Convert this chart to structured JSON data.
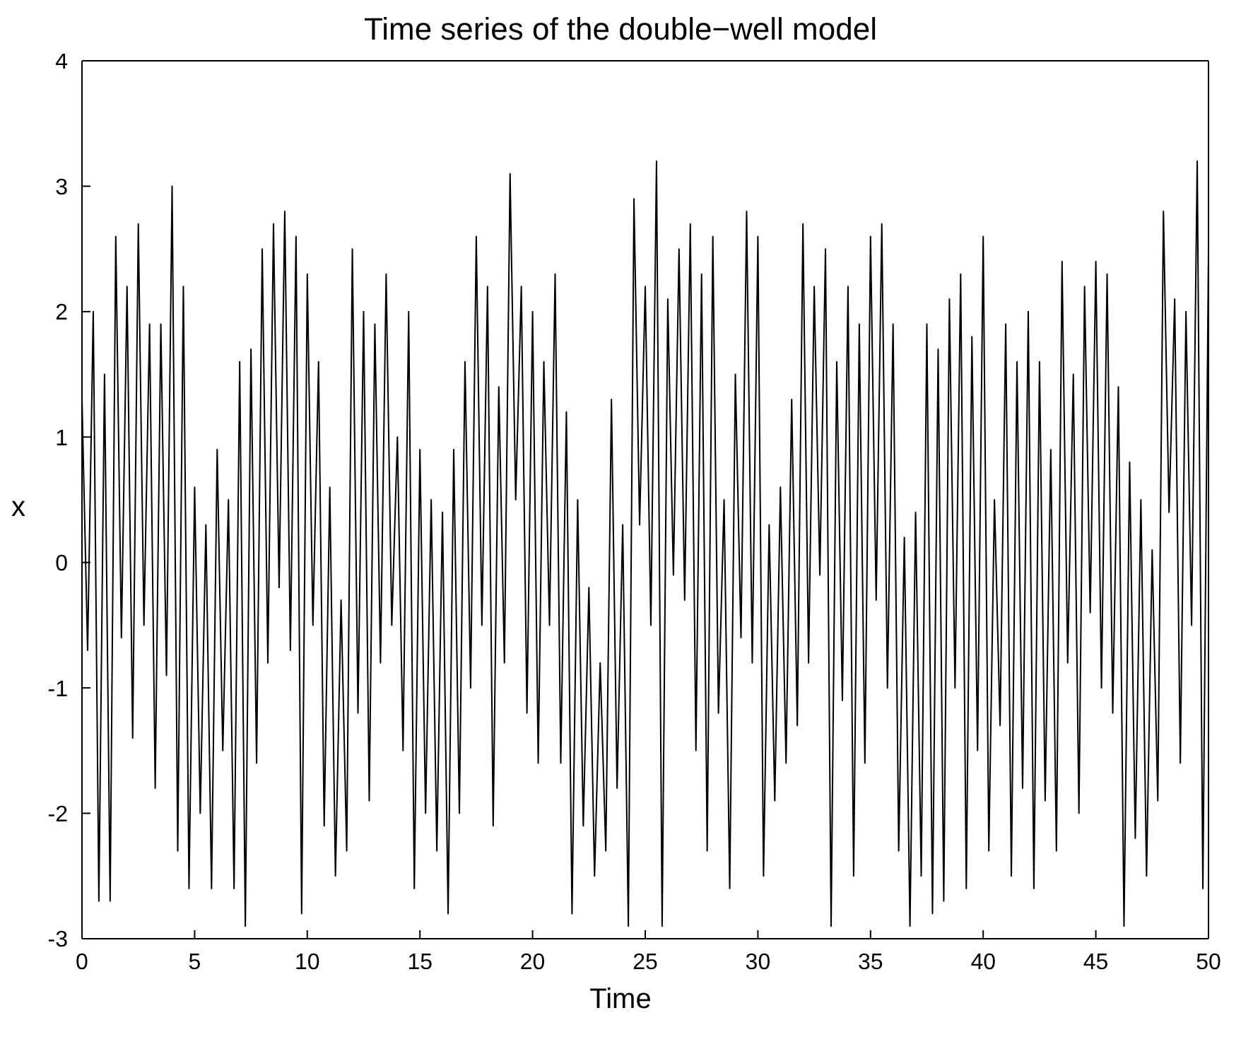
{
  "chart_data": {
    "type": "line",
    "title": "Time series of the double−well model",
    "xlabel": "Time",
    "ylabel": "x",
    "x": [
      0,
      0.25,
      0.5,
      0.75,
      1,
      1.25,
      1.5,
      1.75,
      2,
      2.25,
      2.5,
      2.75,
      3,
      3.25,
      3.5,
      3.75,
      4,
      4.25,
      4.5,
      4.75,
      5,
      5.25,
      5.5,
      5.75,
      6,
      6.25,
      6.5,
      6.75,
      7,
      7.25,
      7.5,
      7.75,
      8,
      8.25,
      8.5,
      8.75,
      9,
      9.25,
      9.5,
      9.75,
      10,
      10.25,
      10.5,
      10.75,
      11,
      11.25,
      11.5,
      11.75,
      12,
      12.25,
      12.5,
      12.75,
      13,
      13.25,
      13.5,
      13.75,
      14,
      14.25,
      14.5,
      14.75,
      15,
      15.25,
      15.5,
      15.75,
      16,
      16.25,
      16.5,
      16.75,
      17,
      17.25,
      17.5,
      17.75,
      18,
      18.25,
      18.5,
      18.75,
      19,
      19.25,
      19.5,
      19.75,
      20,
      20.25,
      20.5,
      20.75,
      21,
      21.25,
      21.5,
      21.75,
      22,
      22.25,
      22.5,
      22.75,
      23,
      23.25,
      23.5,
      23.75,
      24,
      24.25,
      24.5,
      24.75,
      25,
      25.25,
      25.5,
      25.75,
      26,
      26.25,
      26.5,
      26.75,
      27,
      27.25,
      27.5,
      27.75,
      28,
      28.25,
      28.5,
      28.75,
      29,
      29.25,
      29.5,
      29.75,
      30,
      30.25,
      30.5,
      30.75,
      31,
      31.25,
      31.5,
      31.75,
      32,
      32.25,
      32.5,
      32.75,
      33,
      33.25,
      33.5,
      33.75,
      34,
      34.25,
      34.5,
      34.75,
      35,
      35.25,
      35.5,
      35.75,
      36,
      36.25,
      36.5,
      36.75,
      37,
      37.25,
      37.5,
      37.75,
      38,
      38.25,
      38.5,
      38.75,
      39,
      39.25,
      39.5,
      39.75,
      40,
      40.25,
      40.5,
      40.75,
      41,
      41.25,
      41.5,
      41.75,
      42,
      42.25,
      42.5,
      42.75,
      43,
      43.25,
      43.5,
      43.75,
      44,
      44.25,
      44.5,
      44.75,
      45,
      45.25,
      45.5,
      45.75,
      46,
      46.25,
      46.5,
      46.75,
      47,
      47.25,
      47.5,
      47.75,
      48,
      48.25,
      48.5,
      48.75,
      49,
      49.25,
      49.5,
      49.75,
      50
    ],
    "series": [
      {
        "color": "#000000",
        "values": [
          1.3,
          -0.7,
          2.0,
          -2.7,
          1.5,
          -2.7,
          2.6,
          -0.6,
          2.2,
          -1.4,
          2.7,
          -0.5,
          1.9,
          -1.8,
          1.9,
          -0.9,
          3.0,
          -2.3,
          2.2,
          -2.6,
          0.6,
          -2.0,
          0.3,
          -2.6,
          0.9,
          -1.5,
          0.5,
          -2.6,
          1.6,
          -2.9,
          1.7,
          -1.6,
          2.5,
          -0.8,
          2.7,
          -0.2,
          2.8,
          -0.7,
          2.6,
          -2.8,
          2.3,
          -0.5,
          1.6,
          -2.1,
          0.6,
          -2.5,
          -0.3,
          -2.3,
          2.5,
          -1.2,
          2.0,
          -1.9,
          1.9,
          -0.8,
          2.3,
          -0.5,
          1.0,
          -1.5,
          2.0,
          -2.6,
          0.9,
          -2.0,
          0.5,
          -2.3,
          0.4,
          -2.8,
          0.9,
          -2.0,
          1.6,
          -1.0,
          2.6,
          -0.5,
          2.2,
          -2.1,
          1.4,
          -0.8,
          3.1,
          0.5,
          2.2,
          -1.2,
          2.0,
          -1.6,
          1.6,
          -0.5,
          2.3,
          -1.6,
          1.2,
          -2.8,
          0.5,
          -2.1,
          -0.2,
          -2.5,
          -0.8,
          -2.3,
          1.3,
          -1.8,
          0.3,
          -2.9,
          2.9,
          0.3,
          2.2,
          -0.5,
          3.2,
          -2.9,
          2.1,
          -0.1,
          2.5,
          -0.3,
          2.7,
          -1.5,
          2.3,
          -2.3,
          2.6,
          -1.2,
          0.5,
          -2.6,
          1.5,
          -0.6,
          2.8,
          -0.8,
          2.6,
          -2.5,
          0.3,
          -1.9,
          0.6,
          -1.6,
          1.3,
          -1.3,
          2.7,
          -0.8,
          2.2,
          -0.1,
          2.5,
          -2.9,
          1.6,
          -1.1,
          2.2,
          -2.5,
          1.9,
          -1.6,
          2.6,
          -0.3,
          2.7,
          -1.0,
          1.9,
          -2.3,
          0.2,
          -2.9,
          0.4,
          -2.5,
          1.9,
          -2.8,
          1.7,
          -2.7,
          2.1,
          -1.0,
          2.3,
          -2.6,
          1.8,
          -1.5,
          2.6,
          -2.3,
          0.5,
          -1.3,
          1.9,
          -2.5,
          1.6,
          -1.8,
          2.0,
          -2.6,
          1.6,
          -1.9,
          0.9,
          -2.3,
          2.4,
          -0.8,
          1.5,
          -2.0,
          2.2,
          -0.4,
          2.4,
          -1.0,
          2.3,
          -1.2,
          1.4,
          -2.9,
          0.8,
          -2.2,
          0.5,
          -2.5,
          0.1,
          -1.9,
          2.8,
          0.4,
          2.1,
          -1.6,
          2.0,
          -0.5,
          3.2,
          -2.6,
          2.5
        ]
      }
    ],
    "xlim": [
      0,
      50
    ],
    "xticks": [
      0,
      5,
      10,
      15,
      20,
      25,
      30,
      35,
      40,
      45,
      50
    ],
    "ylim": [
      -3,
      4
    ],
    "yticks": [
      -3,
      -2,
      -1,
      0,
      1,
      2,
      3,
      4
    ],
    "grid": false,
    "legend": false,
    "marker": "none",
    "line_style": "solid"
  }
}
